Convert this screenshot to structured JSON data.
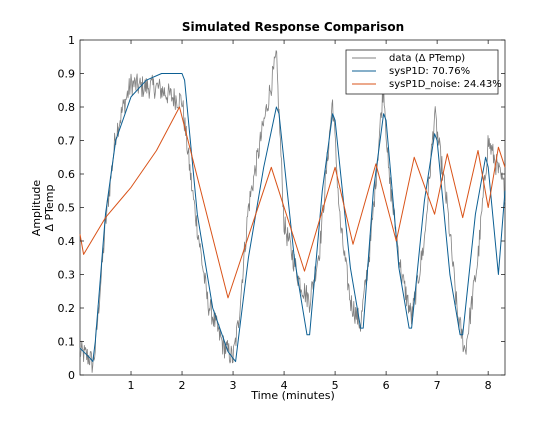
{
  "chart_data": {
    "type": "line",
    "title": "Simulated Response Comparison",
    "xlabel": "Time (minutes)",
    "ylabel": "Amplitude",
    "ylabel_sub": "Δ PTemp",
    "xlim": [
      0,
      8.33
    ],
    "ylim": [
      0,
      1
    ],
    "xticks": [
      1,
      2,
      3,
      4,
      5,
      6,
      7,
      8
    ],
    "yticks": [
      0,
      0.1,
      0.2,
      0.3,
      0.4,
      0.5,
      0.6,
      0.7,
      0.8,
      0.9,
      1
    ],
    "grid": false,
    "legend_position": "top-right",
    "series": [
      {
        "name": "data (Δ PTemp)",
        "color": "#808080",
        "style": "noisy",
        "x": [
          0,
          0.2,
          0.25,
          0.3,
          0.5,
          0.7,
          0.85,
          1.0,
          1.2,
          1.5,
          1.8,
          2.0,
          2.2,
          2.5,
          2.8,
          3.0,
          3.1,
          3.3,
          3.6,
          3.85,
          4.0,
          4.3,
          4.5,
          4.7,
          4.95,
          5.1,
          5.3,
          5.5,
          5.7,
          5.95,
          6.05,
          6.3,
          6.5,
          6.75,
          6.95,
          7.2,
          7.4,
          7.55,
          7.8,
          8.0,
          8.33
        ],
        "y": [
          0.07,
          0.05,
          0.03,
          0.08,
          0.45,
          0.72,
          0.8,
          0.87,
          0.86,
          0.86,
          0.83,
          0.82,
          0.55,
          0.22,
          0.09,
          0.05,
          0.15,
          0.5,
          0.75,
          0.95,
          0.45,
          0.28,
          0.22,
          0.38,
          0.82,
          0.45,
          0.22,
          0.15,
          0.4,
          0.87,
          0.6,
          0.3,
          0.17,
          0.4,
          0.78,
          0.5,
          0.18,
          0.07,
          0.35,
          0.7,
          0.55
        ]
      },
      {
        "name": "sysP1D: 70.76%",
        "color": "#0c5f93",
        "style": "smooth",
        "x": [
          0,
          0.2,
          0.25,
          0.3,
          0.5,
          0.7,
          1.0,
          1.3,
          1.6,
          1.8,
          2.0,
          2.05,
          2.3,
          2.6,
          2.9,
          3.0,
          3.05,
          3.3,
          3.6,
          3.85,
          3.9,
          4.2,
          4.45,
          4.5,
          4.75,
          4.95,
          5.0,
          5.3,
          5.5,
          5.55,
          5.75,
          5.95,
          6.0,
          6.25,
          6.45,
          6.5,
          6.75,
          6.95,
          7.0,
          7.25,
          7.45,
          7.5,
          7.75,
          7.95,
          8.0,
          8.2,
          8.33
        ],
        "y": [
          0.08,
          0.05,
          0.04,
          0.1,
          0.48,
          0.7,
          0.83,
          0.88,
          0.9,
          0.9,
          0.9,
          0.88,
          0.48,
          0.2,
          0.07,
          0.05,
          0.04,
          0.35,
          0.62,
          0.8,
          0.78,
          0.35,
          0.12,
          0.12,
          0.55,
          0.78,
          0.76,
          0.32,
          0.14,
          0.14,
          0.55,
          0.78,
          0.76,
          0.32,
          0.14,
          0.14,
          0.52,
          0.72,
          0.7,
          0.3,
          0.12,
          0.12,
          0.48,
          0.65,
          0.62,
          0.3,
          0.55
        ]
      },
      {
        "name": "sysP1D_noise: 24.43%",
        "color": "#d95319",
        "style": "smooth",
        "x": [
          0,
          0.07,
          0.5,
          1.0,
          1.5,
          1.95,
          2.9,
          3.75,
          4.4,
          5.0,
          5.35,
          5.8,
          6.2,
          6.55,
          6.95,
          7.2,
          7.5,
          7.8,
          8.0,
          8.2,
          8.33
        ],
        "y": [
          0.42,
          0.36,
          0.47,
          0.56,
          0.67,
          0.8,
          0.23,
          0.62,
          0.31,
          0.62,
          0.39,
          0.63,
          0.4,
          0.65,
          0.48,
          0.66,
          0.47,
          0.67,
          0.5,
          0.68,
          0.62
        ]
      }
    ]
  }
}
